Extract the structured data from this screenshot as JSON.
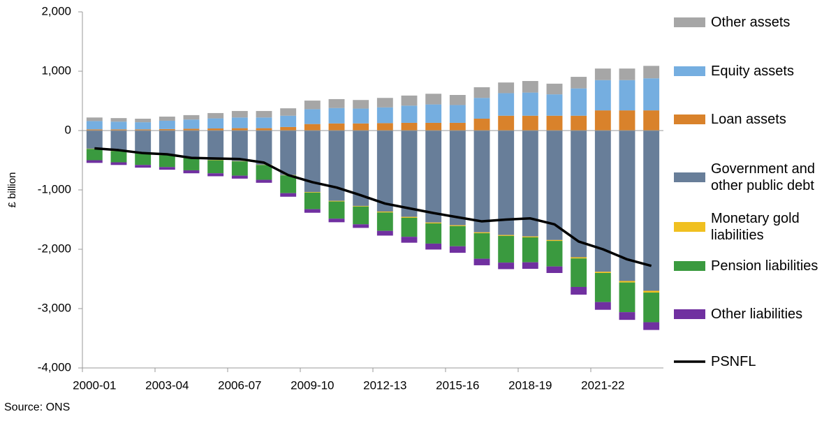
{
  "chart_data": {
    "type": "bar",
    "y_label": "£ billion",
    "source": "Source: ONS",
    "categories": [
      "2000-01",
      null,
      null,
      "2003-04",
      null,
      null,
      "2006-07",
      null,
      null,
      "2009-10",
      null,
      null,
      "2012-13",
      null,
      null,
      "2015-16",
      null,
      null,
      "2018-19",
      null,
      null,
      "2021-22",
      null,
      null
    ],
    "ylim": [
      -4000,
      2000
    ],
    "yticks": [
      {
        "value": -4000,
        "label": "-4,000"
      },
      {
        "value": -3000,
        "label": "-3,000"
      },
      {
        "value": -2000,
        "label": "-2,000"
      },
      {
        "value": -1000,
        "label": "-1,000"
      },
      0,
      {
        "value": 1000,
        "label": "1,000"
      },
      {
        "value": 2000,
        "label": "2,000"
      }
    ],
    "grid": false,
    "series": [
      {
        "name": "Loan assets",
        "color": "#d9822b",
        "values": [
          20,
          20,
          20,
          25,
          30,
          35,
          40,
          40,
          60,
          110,
          120,
          120,
          125,
          130,
          130,
          130,
          200,
          250,
          250,
          250,
          250,
          340,
          340,
          340
        ]
      },
      {
        "name": "Equity assets",
        "color": "#75aee0",
        "values": [
          140,
          130,
          120,
          140,
          155,
          170,
          180,
          180,
          190,
          250,
          260,
          250,
          265,
          290,
          310,
          300,
          350,
          380,
          390,
          360,
          460,
          510,
          510,
          540
        ]
      },
      {
        "name": "Other assets",
        "color": "#a6a6a6",
        "values": [
          60,
          60,
          60,
          70,
          75,
          90,
          110,
          110,
          125,
          145,
          150,
          145,
          160,
          170,
          180,
          170,
          180,
          180,
          195,
          180,
          195,
          195,
          195,
          210
        ]
      },
      {
        "name": "Government and other public debt",
        "color": "#687e99",
        "values": [
          -305,
          -340,
          -375,
          -410,
          -455,
          -495,
          -515,
          -575,
          -750,
          -1035,
          -1185,
          -1270,
          -1365,
          -1455,
          -1550,
          -1595,
          -1715,
          -1760,
          -1785,
          -1845,
          -2135,
          -2380,
          -2535,
          -2700
        ]
      },
      {
        "name": "Monetary gold liabilities",
        "color": "#f0c020",
        "values": [
          -5,
          -5,
          -5,
          -5,
          -5,
          -5,
          -5,
          -5,
          -5,
          -10,
          -10,
          -10,
          -15,
          -15,
          -15,
          -15,
          -15,
          -15,
          -15,
          -15,
          -20,
          -20,
          -25,
          -30
        ]
      },
      {
        "name": "Pension liabilities",
        "color": "#3a9a3f",
        "values": [
          -190,
          -190,
          -200,
          -200,
          -210,
          -220,
          -240,
          -250,
          -300,
          -280,
          -290,
          -300,
          -310,
          -320,
          -340,
          -340,
          -430,
          -450,
          -420,
          -430,
          -480,
          -490,
          -500,
          -500
        ]
      },
      {
        "name": "Other liabilities",
        "color": "#7030a0",
        "values": [
          -45,
          -45,
          -45,
          -45,
          -50,
          -50,
          -50,
          -50,
          -60,
          -60,
          -60,
          -60,
          -80,
          -100,
          -100,
          -110,
          -110,
          -110,
          -110,
          -110,
          -130,
          -130,
          -130,
          -130
        ]
      },
      {
        "name": "PSNFL",
        "color": "#000000",
        "type": "line",
        "values": [
          -300,
          -330,
          -380,
          -400,
          -460,
          -470,
          -480,
          -540,
          -750,
          -870,
          -960,
          -1090,
          -1230,
          -1310,
          -1390,
          -1460,
          -1530,
          -1500,
          -1480,
          -1580,
          -1870,
          -2000,
          -2170,
          -2280
        ]
      }
    ]
  }
}
